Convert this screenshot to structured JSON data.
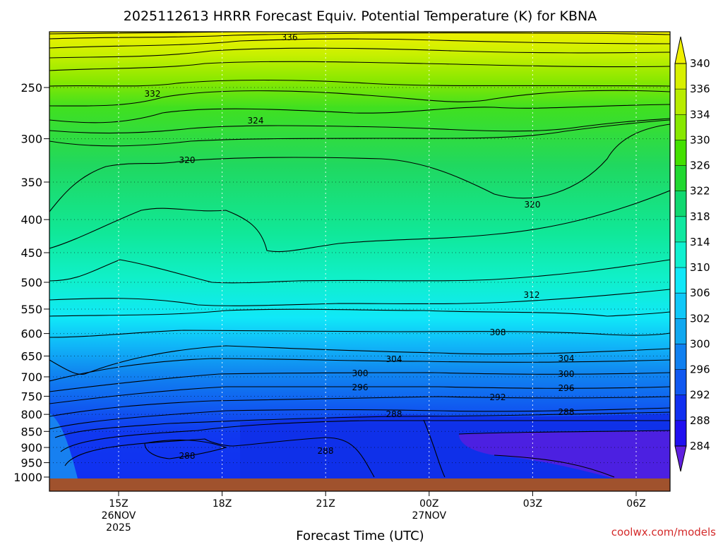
{
  "chart_data": {
    "type": "heatmap",
    "title": "2025112613 HRRR Forecast Equiv. Potential Temperature (K) for KBNA",
    "xlabel": "Forecast Time (UTC)",
    "ylabel": "",
    "y_axis": {
      "scale": "pressure",
      "ticks": [
        250,
        300,
        350,
        400,
        450,
        500,
        550,
        600,
        650,
        700,
        750,
        800,
        850,
        900,
        950,
        1000
      ]
    },
    "x_axis": {
      "ticks": [
        {
          "time": "15Z",
          "date": "26NOV",
          "year": "2025"
        },
        {
          "time": "18Z",
          "date": "",
          "year": ""
        },
        {
          "time": "21Z",
          "date": "",
          "year": ""
        },
        {
          "time": "00Z",
          "date": "27NOV",
          "year": ""
        },
        {
          "time": "03Z",
          "date": "",
          "year": ""
        },
        {
          "time": "06Z",
          "date": "",
          "year": ""
        }
      ]
    },
    "colorbar": {
      "levels": [
        340,
        336,
        334,
        330,
        326,
        322,
        318,
        314,
        310,
        306,
        302,
        300,
        296,
        292,
        288,
        284
      ],
      "colors": [
        "#f0f000",
        "#d8f000",
        "#b8ec00",
        "#88e800",
        "#44e000",
        "#20d830",
        "#10d870",
        "#10e8a0",
        "#10f0d0",
        "#10e8f8",
        "#10c8f8",
        "#10a8f0",
        "#1080f0",
        "#1058f0",
        "#1030f0",
        "#2010f0",
        "#6020e0"
      ]
    },
    "contours": [
      {
        "value": 336,
        "label": "336"
      },
      {
        "value": 332,
        "label": "332"
      },
      {
        "value": 324,
        "label": "324"
      },
      {
        "value": 320,
        "label": "320"
      },
      {
        "value": 312,
        "label": "312"
      },
      {
        "value": 308,
        "label": "308"
      },
      {
        "value": 304,
        "label": "304"
      },
      {
        "value": 300,
        "label": "300"
      },
      {
        "value": 296,
        "label": "296"
      },
      {
        "value": 292,
        "label": "292"
      },
      {
        "value": 288,
        "label": "288"
      }
    ],
    "grid": true,
    "ground_color": "#a0522d"
  },
  "credit": "coolwx.com/models"
}
